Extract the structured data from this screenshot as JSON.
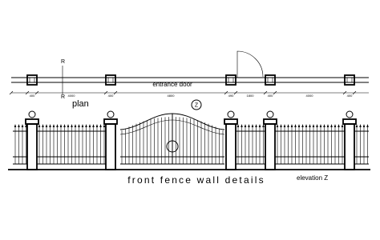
{
  "plan": {
    "section_mark_top": "R",
    "section_mark_bottom": "R",
    "door_label": "entrance door",
    "label": "plan",
    "dimensions": [
      "400",
      "4000",
      "400",
      "4800",
      "490",
      "1800",
      "400",
      "4000",
      "400"
    ]
  },
  "elevation": {
    "view_mark": "Z",
    "title": "front fence wall details",
    "label": "elevation Z"
  }
}
